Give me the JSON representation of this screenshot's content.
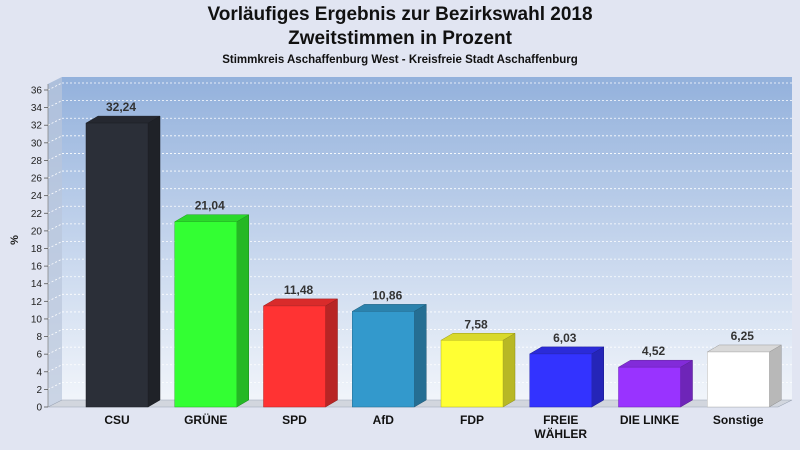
{
  "chart_data": {
    "type": "bar",
    "title_lines": [
      "Vorläufiges Ergebnis zur Bezirkswahl 2018",
      "Zweitstimmen in Prozent"
    ],
    "subtitle": "Stimmkreis Aschaffenburg West - Kreisfreie Stadt Aschaffenburg",
    "ylabel": "%",
    "xlabel": "",
    "ylim": [
      0,
      36
    ],
    "y_tick_step": 2,
    "grid": true,
    "categories": [
      [
        "CSU"
      ],
      [
        "GRÜNE"
      ],
      [
        "SPD"
      ],
      [
        "AfD"
      ],
      [
        "FDP"
      ],
      [
        "FREIE",
        "WÄHLER"
      ],
      [
        "DIE LINKE"
      ],
      [
        "Sonstige"
      ]
    ],
    "values": [
      32.24,
      21.04,
      11.48,
      10.86,
      7.58,
      6.03,
      4.52,
      6.25
    ],
    "value_labels": [
      "32,24",
      "21,04",
      "11,48",
      "10,86",
      "7,58",
      "6,03",
      "4,52",
      "6,25"
    ],
    "colors": [
      "#2b2f38",
      "#33ff33",
      "#ff3333",
      "#3399cc",
      "#ffff33",
      "#3333ff",
      "#9933ff",
      "#ffffff"
    ]
  }
}
